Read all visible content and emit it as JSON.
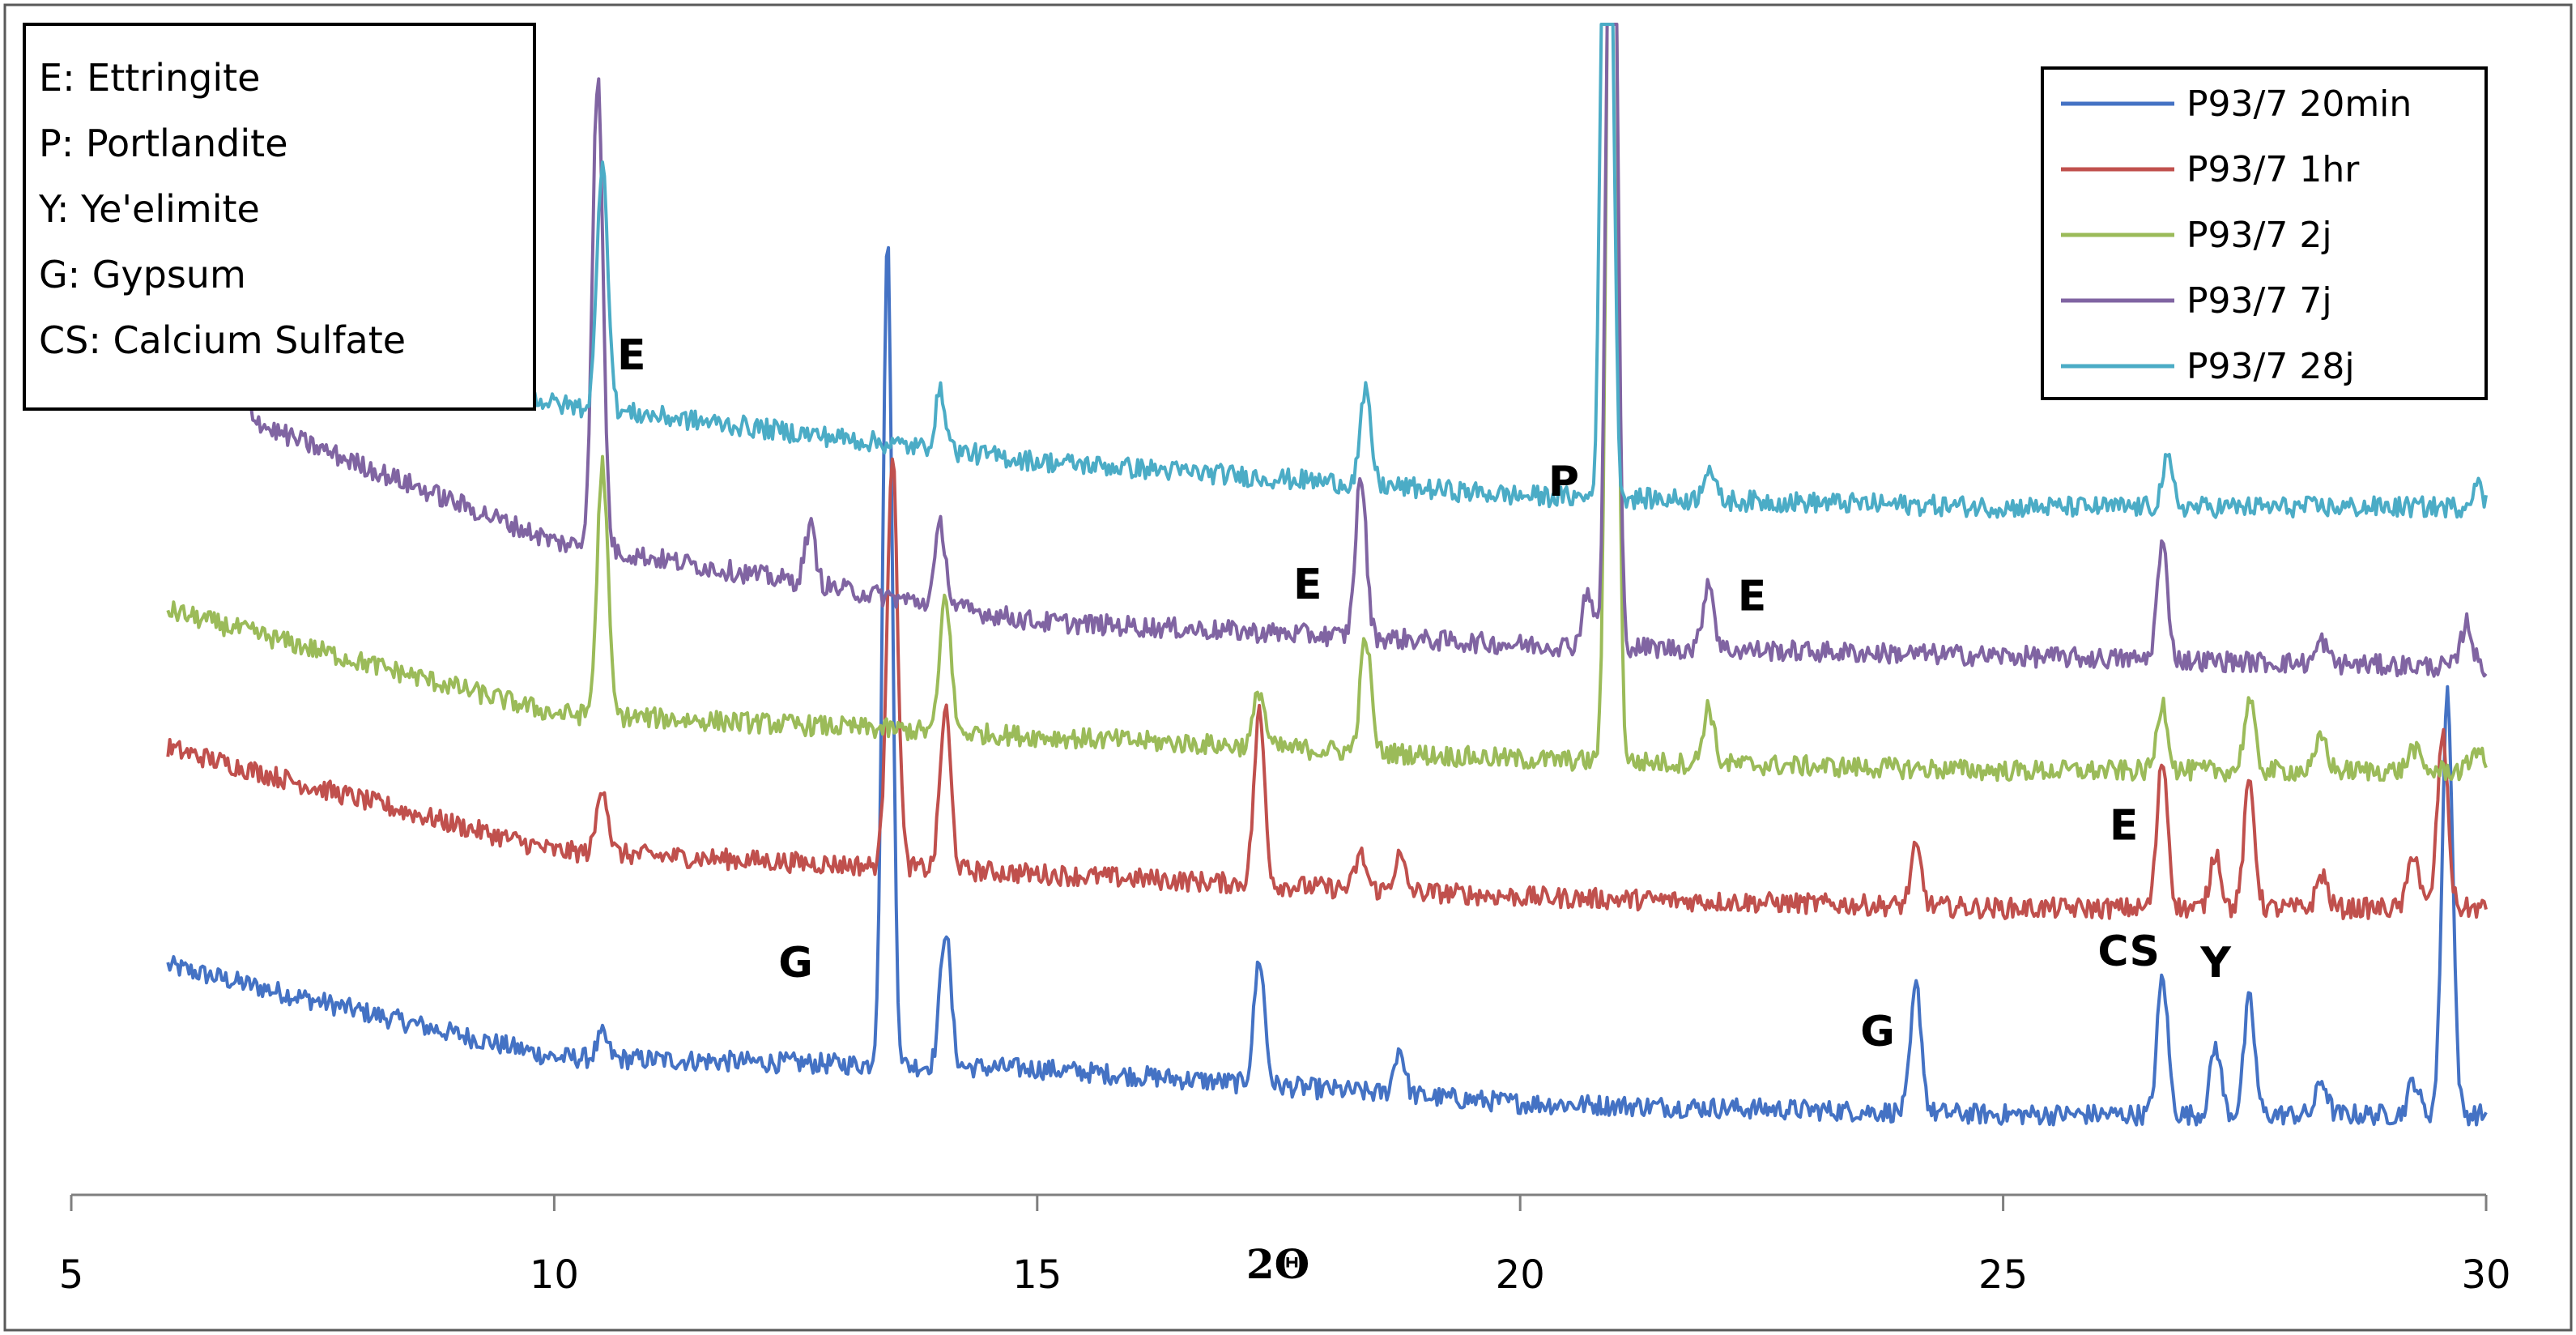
{
  "chart_data": {
    "type": "line",
    "title": "",
    "xlabel": "2Θ",
    "ylabel": "",
    "xlim": [
      5,
      30
    ],
    "x_ticks": [
      "5",
      "10",
      "15",
      "20",
      "25",
      "30"
    ],
    "grid": false,
    "legend_position": "top-right",
    "key_box": {
      "position": "top-left",
      "lines": [
        "E: Ettringite",
        "P: Portlandite",
        "Y: Ye'elimite",
        "G: Gypsum",
        "CS: Calcium Sulfate"
      ]
    },
    "series": [
      {
        "name": "P93/7 20min",
        "color": "#4472C4",
        "baseline": [
          [
            6,
            0.2
          ],
          [
            10,
            0.12
          ],
          [
            15,
            0.11
          ],
          [
            20,
            0.08
          ],
          [
            25,
            0.07
          ],
          [
            30,
            0.07
          ]
        ],
        "peaks": [
          [
            10.5,
            0.02
          ],
          [
            13.45,
            0.72
          ],
          [
            14.05,
            0.12
          ],
          [
            17.3,
            0.11
          ],
          [
            18.75,
            0.04
          ],
          [
            24.1,
            0.11
          ],
          [
            26.65,
            0.12
          ],
          [
            27.2,
            0.06
          ],
          [
            27.55,
            0.1
          ],
          [
            28.3,
            0.03
          ],
          [
            29.25,
            0.03
          ],
          [
            29.6,
            0.37
          ]
        ]
      },
      {
        "name": "P93/7 1hr",
        "color": "#C0504D",
        "baseline": [
          [
            6,
            0.39
          ],
          [
            10,
            0.3
          ],
          [
            15,
            0.28
          ],
          [
            20,
            0.26
          ],
          [
            25,
            0.25
          ],
          [
            30,
            0.25
          ]
        ],
        "peaks": [
          [
            10.5,
            0.06
          ],
          [
            13.5,
            0.36
          ],
          [
            14.05,
            0.14
          ],
          [
            17.3,
            0.15
          ],
          [
            18.35,
            0.03
          ],
          [
            18.75,
            0.03
          ],
          [
            24.1,
            0.05
          ],
          [
            26.65,
            0.13
          ],
          [
            27.2,
            0.05
          ],
          [
            27.55,
            0.11
          ],
          [
            28.3,
            0.03
          ],
          [
            29.25,
            0.05
          ],
          [
            29.55,
            0.15
          ]
        ]
      },
      {
        "name": "P93/7 2j",
        "color": "#9BBB59",
        "baseline": [
          [
            6,
            0.51
          ],
          [
            10,
            0.42
          ],
          [
            15,
            0.4
          ],
          [
            20,
            0.38
          ],
          [
            25,
            0.37
          ],
          [
            30,
            0.37
          ]
        ],
        "peaks": [
          [
            10.5,
            0.22
          ],
          [
            14.05,
            0.12
          ],
          [
            17.3,
            0.05
          ],
          [
            18.4,
            0.1
          ],
          [
            20.95,
            1.1
          ],
          [
            21.95,
            0.05
          ],
          [
            26.65,
            0.06
          ],
          [
            27.55,
            0.06
          ],
          [
            28.3,
            0.03
          ],
          [
            29.25,
            0.02
          ],
          [
            29.9,
            0.02
          ]
        ]
      },
      {
        "name": "P93/7 7j",
        "color": "#8064A2",
        "baseline": [
          [
            6.3,
            0.74
          ],
          [
            7,
            0.67
          ],
          [
            10,
            0.57
          ],
          [
            15,
            0.5
          ],
          [
            20,
            0.48
          ],
          [
            25,
            0.47
          ],
          [
            30,
            0.46
          ]
        ],
        "peaks": [
          [
            10.45,
            0.41
          ],
          [
            12.65,
            0.05
          ],
          [
            14.0,
            0.07
          ],
          [
            18.35,
            0.14
          ],
          [
            20.7,
            0.05
          ],
          [
            20.95,
            1.0
          ],
          [
            21.95,
            0.06
          ],
          [
            26.65,
            0.1
          ],
          [
            28.3,
            0.02
          ],
          [
            29.8,
            0.04
          ]
        ]
      },
      {
        "name": "P93/7 28j",
        "color": "#4BACC6",
        "baseline": [
          [
            7.2,
            0.76
          ],
          [
            10,
            0.69
          ],
          [
            15,
            0.64
          ],
          [
            20,
            0.61
          ],
          [
            25,
            0.6
          ],
          [
            30,
            0.6
          ]
        ],
        "peaks": [
          [
            10.5,
            0.22
          ],
          [
            14.0,
            0.05
          ],
          [
            18.4,
            0.08
          ],
          [
            20.9,
            1.0
          ],
          [
            21.95,
            0.03
          ],
          [
            26.7,
            0.04
          ],
          [
            29.9,
            0.02
          ]
        ]
      }
    ],
    "annotations": [
      {
        "text": "E",
        "x": 10.8,
        "y": 0.72
      },
      {
        "text": "E",
        "x": 17.8,
        "y": 0.52
      },
      {
        "text": "P",
        "x": 20.45,
        "y": 0.61
      },
      {
        "text": "E",
        "x": 22.4,
        "y": 0.51
      },
      {
        "text": "E",
        "x": 26.25,
        "y": 0.31
      },
      {
        "text": "G",
        "x": 12.5,
        "y": 0.19
      },
      {
        "text": "G",
        "x": 23.7,
        "y": 0.13
      },
      {
        "text": "CS",
        "x": 26.3,
        "y": 0.2
      },
      {
        "text": "Y",
        "x": 27.2,
        "y": 0.19
      }
    ]
  }
}
